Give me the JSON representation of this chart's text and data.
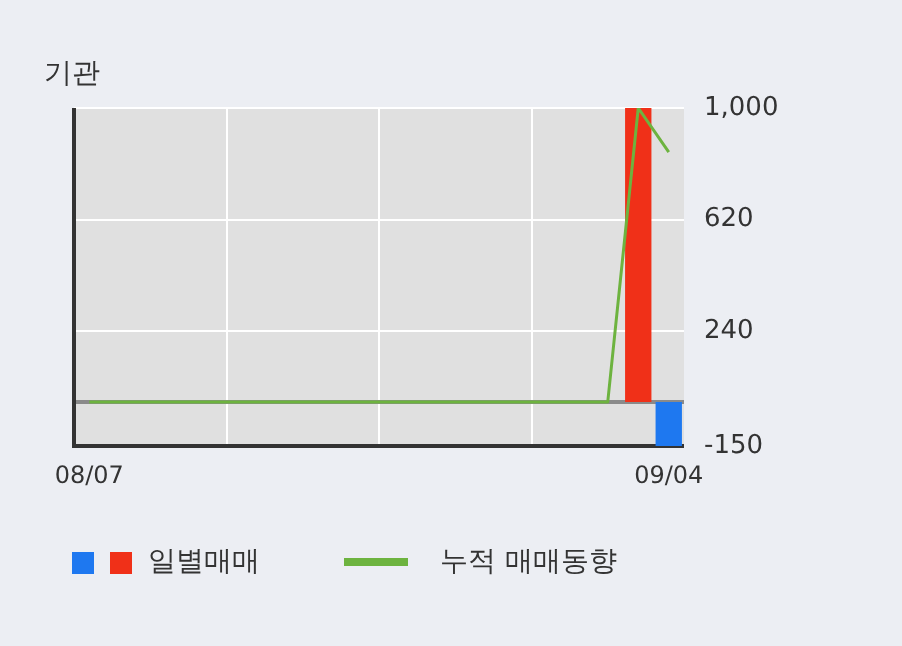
{
  "chart_data": {
    "type": "bar",
    "title": "기관",
    "categories": [
      "08/07",
      null,
      null,
      null,
      null,
      null,
      null,
      null,
      null,
      null,
      null,
      null,
      null,
      null,
      null,
      null,
      null,
      null,
      null,
      "09/04"
    ],
    "series": [
      {
        "name": "일별매매",
        "colors": [
          "#f03018",
          "#f03018",
          "#f03018",
          "#f03018",
          "#f03018",
          "#f03018",
          "#f03018",
          "#f03018",
          "#f03018",
          "#f03018",
          "#f03018",
          "#f03018",
          "#f03018",
          "#f03018",
          "#f03018",
          "#f03018",
          "#f03018",
          "#f03018",
          "#f03018",
          "#1e78f0"
        ],
        "values": [
          0,
          0,
          0,
          0,
          0,
          0,
          0,
          0,
          0,
          0,
          0,
          0,
          0,
          0,
          0,
          0,
          0,
          0,
          1000,
          -150
        ]
      },
      {
        "name": "누적 매매동향",
        "type": "line",
        "color": "#6db33f",
        "values": [
          0,
          0,
          0,
          0,
          0,
          0,
          0,
          0,
          0,
          0,
          0,
          0,
          0,
          0,
          0,
          0,
          0,
          0,
          1000,
          850
        ]
      }
    ],
    "ylim": [
      -150,
      1000
    ],
    "yticks": [
      -150,
      240,
      620,
      {
        "value": 1000,
        "label": "1,000"
      }
    ],
    "grid": true,
    "legend": "bottom",
    "marker": "none"
  }
}
